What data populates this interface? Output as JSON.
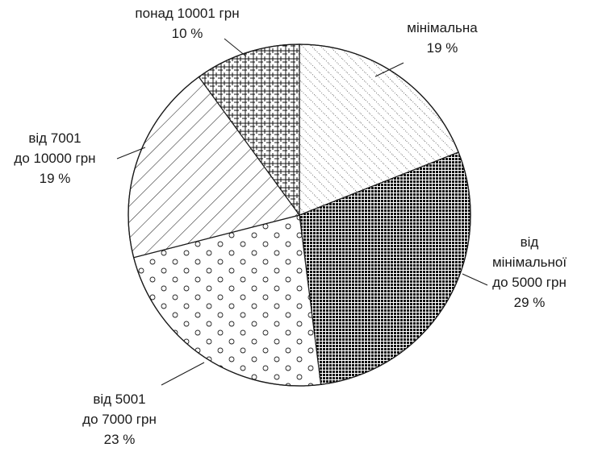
{
  "chart_data": {
    "type": "pie",
    "slices": [
      {
        "lines": [
          "мінімальна",
          "19 %"
        ],
        "value": 19,
        "pattern": "diag-dots"
      },
      {
        "lines": [
          "від",
          "мінімальної",
          "до 5000 грн",
          "29 %"
        ],
        "value": 29,
        "pattern": "dense-grid"
      },
      {
        "lines": [
          "від 5001",
          "до 7000 грн",
          "23 %"
        ],
        "value": 23,
        "pattern": "circles"
      },
      {
        "lines": [
          "від 7001",
          "до 10000 грн",
          "19 %"
        ],
        "value": 19,
        "pattern": "diag-lines"
      },
      {
        "lines": [
          "понад 10001 грн",
          "10 %"
        ],
        "value": 10,
        "pattern": "cross-hatch"
      }
    ]
  }
}
